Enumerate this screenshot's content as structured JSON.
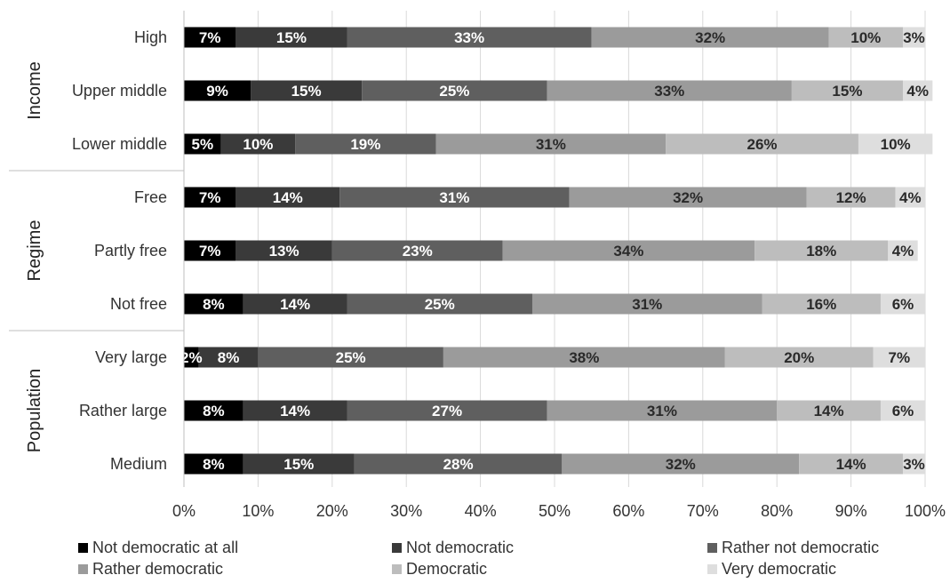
{
  "chart_data": {
    "type": "bar",
    "orientation": "horizontal",
    "stacked": "percent",
    "xlim": [
      0,
      100
    ],
    "x_ticks": [
      "0%",
      "10%",
      "20%",
      "30%",
      "40%",
      "50%",
      "60%",
      "70%",
      "80%",
      "90%",
      "100%"
    ],
    "grid": true,
    "legend": "bottom",
    "groups": [
      {
        "name": "Income",
        "categories": [
          "High",
          "Upper middle",
          "Lower middle"
        ]
      },
      {
        "name": "Regime",
        "categories": [
          "Free",
          "Partly free",
          "Not free"
        ]
      },
      {
        "name": "Population",
        "categories": [
          "Very large",
          "Rather large",
          "Medium"
        ]
      }
    ],
    "categories": [
      "High",
      "Upper middle",
      "Lower middle",
      "Free",
      "Partly free",
      "Not free",
      "Very large",
      "Rather large",
      "Medium"
    ],
    "series": [
      {
        "name": "Not democratic at all",
        "color": "#000000",
        "label_color": "#ffffff",
        "values": [
          7,
          9,
          5,
          7,
          7,
          8,
          2,
          8,
          8
        ],
        "labels": [
          "7%",
          "9%",
          "5%",
          "7%",
          "7%",
          "8%",
          "2%",
          "8%",
          "8%"
        ]
      },
      {
        "name": "Not democratic",
        "color": "#3a3a3a",
        "label_color": "#ffffff",
        "values": [
          15,
          15,
          10,
          14,
          13,
          14,
          8,
          14,
          15
        ],
        "labels": [
          "15%",
          "15%",
          "10%",
          "14%",
          "13%",
          "14%",
          "8%",
          "14%",
          "15%"
        ]
      },
      {
        "name": "Rather not democratic",
        "color": "#5f5f5f",
        "label_color": "#ffffff",
        "values": [
          33,
          25,
          19,
          31,
          23,
          25,
          25,
          27,
          28
        ],
        "labels": [
          "33%",
          "25%",
          "19%",
          "31%",
          "23%",
          "25%",
          "25%",
          "27%",
          "28%"
        ]
      },
      {
        "name": "Rather democratic",
        "color": "#9b9b9b",
        "label_color": "#2a2a2a",
        "values": [
          32,
          33,
          31,
          32,
          34,
          31,
          38,
          31,
          32
        ],
        "labels": [
          "32%",
          "33%",
          "31%",
          "32%",
          "34%",
          "31%",
          "38%",
          "31%",
          "32%"
        ]
      },
      {
        "name": "Democratic",
        "color": "#bdbdbd",
        "label_color": "#2a2a2a",
        "values": [
          10,
          15,
          26,
          12,
          18,
          16,
          20,
          14,
          14
        ],
        "labels": [
          "10%",
          "15%",
          "26%",
          "12%",
          "18%",
          "16%",
          "20%",
          "14%",
          "14%"
        ]
      },
      {
        "name": "Very democratic",
        "color": "#dedede",
        "label_color": "#2a2a2a",
        "values": [
          3,
          4,
          10,
          4,
          4,
          6,
          7,
          6,
          3
        ],
        "labels": [
          "3%",
          "4%",
          "10%",
          "4%",
          "4%",
          "6%",
          "7%",
          "6%",
          "3%"
        ]
      }
    ]
  }
}
